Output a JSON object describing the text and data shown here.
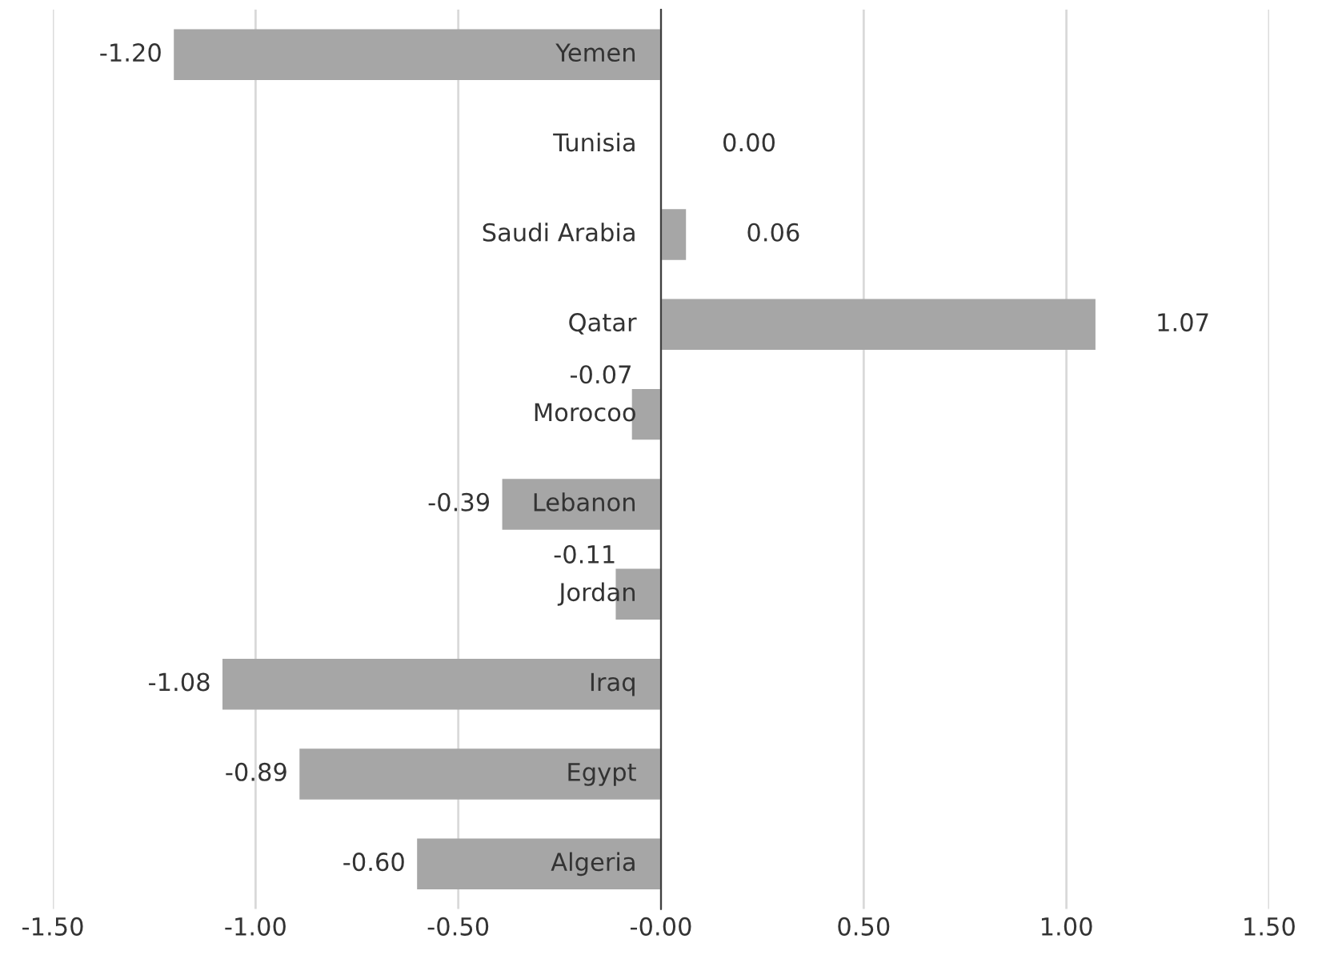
{
  "chart_data": {
    "type": "bar",
    "orientation": "horizontal",
    "categories": [
      "Yemen",
      "Tunisia",
      "Saudi Arabia",
      "Qatar",
      "Morocoo",
      "Lebanon",
      "Jordan",
      "Iraq",
      "Egypt",
      "Algeria"
    ],
    "values": [
      -1.2,
      0.0,
      0.06,
      1.07,
      -0.07,
      -0.39,
      -0.11,
      -1.08,
      -0.89,
      -0.6
    ],
    "value_labels": [
      "-1.20",
      "0.00",
      "0.06",
      "1.07",
      "-0.07",
      "-0.39",
      "-0.11",
      "-1.08",
      "-0.89",
      "-0.60"
    ],
    "color": "#a6a6a6",
    "xlim": [
      -1.5,
      1.5
    ],
    "xticks": [
      {
        "value": -1.5,
        "label": "-1.50"
      },
      {
        "value": -1.0,
        "label": "-1.00"
      },
      {
        "value": -0.5,
        "label": "-0.50"
      },
      {
        "value": 0,
        "label": "-0.00"
      },
      {
        "value": 0.5,
        "label": "0.50"
      },
      {
        "value": 1.0,
        "label": "1.00"
      },
      {
        "value": 1.5,
        "label": "1.50"
      }
    ],
    "grid": "x"
  }
}
